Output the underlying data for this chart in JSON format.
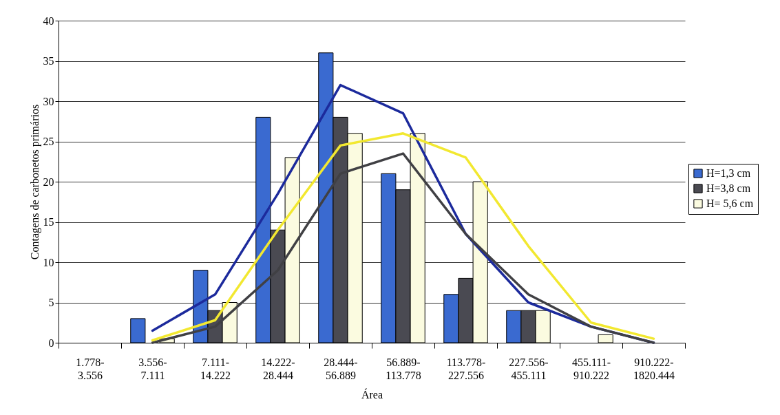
{
  "chart_data": {
    "type": "bar",
    "xlabel": "Área",
    "ylabel": "Contagens de carbonetos primários",
    "categories": [
      "1.778-3.556",
      "3.556-7.111",
      "7.111-14.222",
      "14.222-28.444",
      "28.444-56.889",
      "56.889-113.778",
      "113.778-227.556",
      "227.556-455.111",
      "455.111-910.222",
      "910.222-1820.444"
    ],
    "series": [
      {
        "name": "H=1,3 cm",
        "color": "#3a6ad0",
        "values": [
          0,
          3,
          9,
          28,
          36,
          21,
          6,
          4,
          0,
          0
        ]
      },
      {
        "name": "H=3,8 cm",
        "color": "#4a4a52",
        "values": [
          0,
          0,
          4,
          14,
          28,
          19,
          8,
          4,
          0,
          0
        ]
      },
      {
        "name": "H= 5,6 cm",
        "color": "#fbfbe0",
        "values": [
          0,
          0.5,
          5,
          23,
          26,
          26,
          20,
          4,
          1,
          0
        ]
      },
      {
        "type": "line",
        "color": "#1c2a9c",
        "values": [
          null,
          1.5,
          6,
          18.5,
          32,
          28.5,
          13.5,
          5,
          2,
          0
        ]
      },
      {
        "type": "line",
        "color": "#404044",
        "values": [
          null,
          0,
          2,
          9,
          21,
          23.5,
          13.5,
          6,
          2,
          0
        ]
      },
      {
        "type": "line",
        "color": "#f2e830",
        "values": [
          null,
          0.3,
          2.8,
          14,
          24.5,
          26,
          23,
          12,
          2.5,
          0.5
        ]
      }
    ],
    "ylim": [
      0,
      40
    ],
    "yticks": [
      0,
      5,
      10,
      15,
      20,
      25,
      30,
      35,
      40
    ],
    "grid": "y",
    "legend": "right"
  }
}
